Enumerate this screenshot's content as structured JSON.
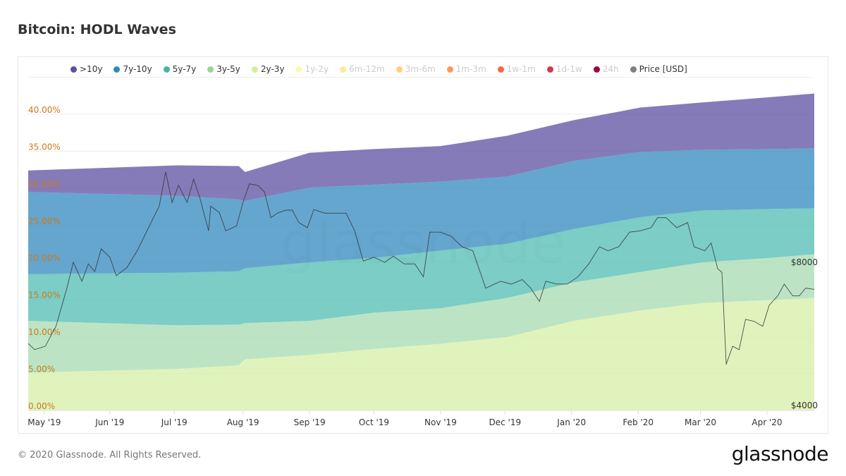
{
  "title": "Bitcoin: HODL Waves",
  "footer": "© 2020 Glassnode. All Rights Reserved.",
  "logo": "glassnode",
  "watermark": "glassnode",
  "legend": [
    {
      "label": ">10y",
      "color": "#5e4fa2",
      "active": true
    },
    {
      "label": "7y-10y",
      "color": "#3288bd",
      "active": true
    },
    {
      "label": "5y-7y",
      "color": "#45b5aa",
      "active": true
    },
    {
      "label": "3y-5y",
      "color": "#99d59a",
      "active": true
    },
    {
      "label": "2y-3y",
      "color": "#d5ee9b",
      "active": true
    },
    {
      "label": "1y-2y",
      "color": "#fbf8b0",
      "active": false
    },
    {
      "label": "6m-12m",
      "color": "#fee999",
      "active": false
    },
    {
      "label": "3m-6m",
      "color": "#fdd07d",
      "active": false
    },
    {
      "label": "1m-3m",
      "color": "#fa9a5a",
      "active": false
    },
    {
      "label": "1w-1m",
      "color": "#f26a45",
      "active": false
    },
    {
      "label": "1d-1w",
      "color": "#d3394c",
      "active": false
    },
    {
      "label": "24h",
      "color": "#9e0142",
      "active": false
    },
    {
      "label": "Price [USD]",
      "color": "#808080",
      "active": true
    }
  ],
  "chart_data": {
    "type": "area",
    "title": "Bitcoin: HODL Waves",
    "stacked": true,
    "x_unit": "days since 2019-04-24",
    "ylim": [
      0,
      45
    ],
    "y_ticks": [
      "0.00%",
      "5.00%",
      "10.00%",
      "15.00%",
      "20.00%",
      "25.00%",
      "30.00%",
      "35.00%",
      "40.00%"
    ],
    "y_tick_values": [
      0,
      5,
      10,
      15,
      20,
      25,
      30,
      35,
      40
    ],
    "x_ticks": [
      {
        "label": "May '19",
        "day": 7.5
      },
      {
        "label": "Jun '19",
        "day": 38
      },
      {
        "label": "Jul '19",
        "day": 68
      },
      {
        "label": "Aug '19",
        "day": 100
      },
      {
        "label": "Sep '19",
        "day": 131
      },
      {
        "label": "Oct '19",
        "day": 161
      },
      {
        "label": "Nov '19",
        "day": 192
      },
      {
        "label": "Dec '19",
        "day": 222
      },
      {
        "label": "Jan '20",
        "day": 253
      },
      {
        "label": "Feb '20",
        "day": 284
      },
      {
        "label": "Mar '20",
        "day": 313
      },
      {
        "label": "Apr '20",
        "day": 344
      }
    ],
    "x": [
      0,
      69,
      98,
      101,
      131,
      161,
      192,
      223,
      254,
      285,
      314,
      345,
      366
    ],
    "series": [
      {
        "name": "2y-3y",
        "color": "#d7efa7",
        "values": [
          5.1,
          5.6,
          6.1,
          6.9,
          7.5,
          8.3,
          9.0,
          9.9,
          12.1,
          13.5,
          14.5,
          14.9,
          15.2
        ]
      },
      {
        "name": "3y-5y",
        "color": "#a5dbb0",
        "values": [
          7.0,
          5.9,
          5.5,
          4.9,
          4.6,
          4.9,
          4.8,
          5.3,
          5.2,
          5.2,
          5.5,
          5.7,
          5.9
        ]
      },
      {
        "name": "5y-7y",
        "color": "#4fbcb1",
        "values": [
          6.3,
          7.1,
          7.2,
          7.4,
          7.9,
          7.4,
          7.8,
          7.3,
          7.2,
          7.4,
          7.0,
          6.6,
          6.2
        ]
      },
      {
        "name": "7y-10y",
        "color": "#3288bd",
        "values": [
          11.1,
          10.4,
          9.7,
          9.1,
          10.1,
          9.9,
          9.3,
          9.1,
          9.2,
          8.8,
          8.2,
          8.1,
          8.1
        ]
      },
      {
        "name": ">10y",
        "color": "#5e4fa2",
        "values": [
          2.9,
          4.1,
          4.5,
          3.9,
          4.7,
          4.8,
          4.8,
          5.5,
          5.5,
          6.0,
          6.4,
          7.0,
          7.4
        ]
      }
    ],
    "price": {
      "name": "Price [USD]",
      "scale": "log",
      "right_ticks": [
        "$4000",
        "$8000"
      ],
      "right_tick_values": [
        4000,
        8000
      ],
      "days": [
        0,
        3,
        8,
        13,
        18,
        21,
        25,
        28,
        31,
        34,
        38,
        41,
        46,
        51,
        56,
        61,
        64,
        67,
        70,
        74,
        77,
        80,
        84,
        85,
        89,
        92,
        97,
        100,
        103,
        107,
        110,
        113,
        116,
        120,
        123,
        126,
        130,
        133,
        138,
        143,
        148,
        152,
        156,
        161,
        166,
        170,
        175,
        180,
        184,
        187,
        192,
        197,
        202,
        207,
        213,
        220,
        225,
        230,
        234,
        238,
        241,
        246,
        251,
        256,
        261,
        266,
        270,
        275,
        280,
        285,
        290,
        293,
        297,
        302,
        307,
        310,
        315,
        318,
        321,
        323,
        325,
        328,
        331,
        334,
        338,
        342,
        345,
        349,
        352,
        356,
        359,
        362,
        366
      ],
      "values": [
        5400,
        5240,
        5330,
        5880,
        7060,
        8000,
        7300,
        7940,
        7650,
        8540,
        8200,
        7500,
        7800,
        8500,
        9460,
        10500,
        12400,
        10690,
        11620,
        10690,
        11970,
        10900,
        9320,
        10500,
        10180,
        9320,
        9540,
        10690,
        11700,
        11600,
        11250,
        9930,
        10150,
        10300,
        10300,
        9700,
        9460,
        10330,
        10150,
        10150,
        10150,
        9320,
        8050,
        8200,
        8000,
        8240,
        7940,
        7940,
        7460,
        9260,
        9260,
        9070,
        8630,
        8460,
        7060,
        7300,
        7200,
        7360,
        7060,
        6620,
        7300,
        7200,
        7200,
        7460,
        7940,
        8630,
        8460,
        8630,
        9260,
        9320,
        9460,
        9930,
        9930,
        9460,
        9700,
        8630,
        8460,
        8780,
        7760,
        7620,
        4880,
        5330,
        5240,
        6070,
        6010,
        5870,
        6500,
        6800,
        7200,
        6800,
        6800,
        7060,
        7020
      ]
    }
  }
}
